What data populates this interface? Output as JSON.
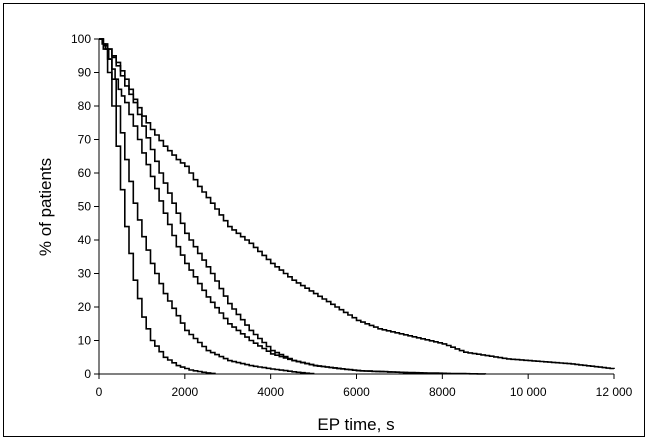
{
  "chart_data": {
    "type": "line",
    "title": "",
    "xlabel": "EP time, s",
    "ylabel": "% of patients",
    "xlim": [
      0,
      12000
    ],
    "ylim": [
      0,
      100
    ],
    "x_ticks": [
      0,
      2000,
      4000,
      6000,
      8000,
      10000,
      12000
    ],
    "x_tick_labels": [
      "0",
      "2000",
      "4000",
      "6000",
      "8000",
      "10 000",
      "12 000"
    ],
    "y_ticks": [
      0,
      10,
      20,
      30,
      40,
      50,
      60,
      70,
      80,
      90,
      100
    ],
    "y_tick_labels": [
      "0",
      "10",
      "20",
      "30",
      "40",
      "50",
      "60",
      "70",
      "80",
      "90",
      "100"
    ],
    "grid": false,
    "legend": "none",
    "line_color": "#000000",
    "series": [
      {
        "x": [
          0,
          100,
          200,
          300,
          400,
          500,
          600,
          800,
          1000,
          1200,
          1500,
          1800,
          2100,
          2400,
          2700
        ],
        "y": [
          100,
          97,
          90,
          80,
          68,
          55,
          44,
          28,
          17,
          10,
          5,
          2.5,
          1.2,
          0.5,
          0
        ]
      },
      {
        "x": [
          0,
          100,
          200,
          300,
          400,
          500,
          600,
          800,
          1000,
          1200,
          1500,
          2000,
          2500,
          3000,
          3500,
          4000,
          4600,
          5000
        ],
        "y": [
          100,
          98,
          94,
          88,
          80,
          72,
          64,
          51,
          41,
          33,
          24,
          13,
          7,
          4,
          2.5,
          1.5,
          0.5,
          0
        ]
      },
      {
        "x": [
          0,
          150,
          300,
          450,
          600,
          800,
          1000,
          1200,
          1500,
          1800,
          2000,
          2500,
          3000,
          3500,
          4000,
          4500,
          5000,
          6000,
          7000,
          7500
        ],
        "y": [
          100,
          97,
          91,
          85,
          81,
          74,
          66,
          59,
          48,
          38,
          33,
          23,
          15,
          10,
          6,
          4,
          2.5,
          1,
          0.5,
          0
        ]
      },
      {
        "x": [
          0,
          200,
          400,
          600,
          800,
          1000,
          1200,
          1400,
          1700,
          2000,
          2300,
          2600,
          3000,
          3500,
          4000,
          4500,
          5000,
          6000,
          7000,
          8000,
          9000
        ],
        "y": [
          100,
          97,
          92,
          86,
          81,
          74,
          67,
          60,
          51,
          42,
          36,
          30,
          21,
          13,
          7,
          4,
          2.5,
          1,
          0.5,
          0.2,
          0
        ]
      },
      {
        "x": [
          0,
          200,
          400,
          600,
          800,
          1000,
          1200,
          1500,
          1800,
          2000,
          2300,
          2600,
          3000,
          3500,
          4000,
          4500,
          5000,
          5500,
          6000,
          6500,
          7000,
          7500,
          8000,
          8500,
          9000,
          9500,
          10000,
          11000,
          12000
        ],
        "y": [
          100,
          97,
          93,
          88,
          82,
          77,
          73,
          68,
          64,
          62,
          56,
          51,
          44,
          39,
          33,
          28,
          24,
          20,
          16,
          13.5,
          12,
          10.5,
          9,
          6.5,
          5.5,
          4.5,
          4,
          3,
          1.5
        ]
      }
    ]
  }
}
